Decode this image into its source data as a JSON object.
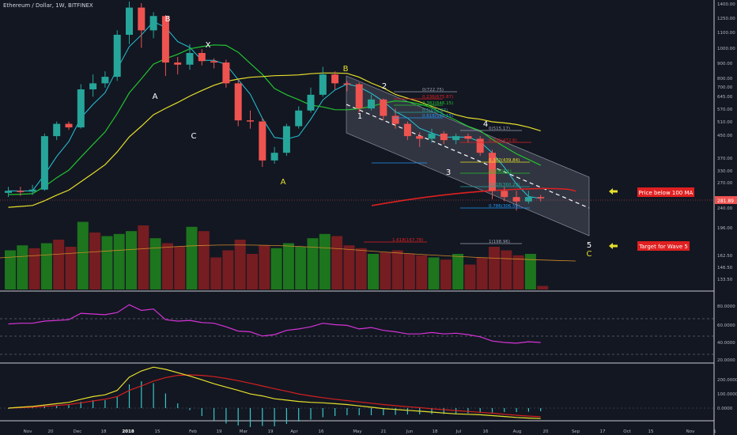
{
  "header": {
    "title": "Ethereum / Dollar, 1W, BITFINEX"
  },
  "annotations": {
    "price_below_ma": "Price below 100 MA",
    "target_wave5": "Target for Wave 5",
    "current_price": "281.89"
  },
  "colors": {
    "background": "#131722",
    "up": "#26a69a",
    "down": "#ef5350",
    "ma_fast": "#26c6da",
    "ma_mid": "#22c42f",
    "ma_slow": "#e6e02a",
    "ma_100": "#e02020",
    "vol_up": "#1e7a1e",
    "vol_down": "#7a1e22",
    "rsi": "#d633d6",
    "macd_fast": "#e6e02a",
    "macd_slow": "#d42020",
    "macd_hist": "#39c6c6",
    "label_box": "#e02020",
    "arrow": "#e6e02a",
    "channel": "#9aa0b0"
  },
  "chart_data": {
    "type": "candlestick",
    "x_ticks": [
      "Nov",
      "20",
      "Dec",
      "18",
      "2018",
      "15",
      "Feb",
      "19",
      "Mar",
      "19",
      "Apr",
      "16",
      "May",
      "21",
      "Jun",
      "18",
      "Jul",
      "16",
      "Aug",
      "20",
      "Sep",
      "17",
      "Oct",
      "15",
      "Nov",
      "1"
    ],
    "y_ticks": [
      "1400.00",
      "1250.00",
      "1100.00",
      "1000.00",
      "900.00",
      "800.00",
      "700.00",
      "645.00",
      "570.00",
      "510.00",
      "450.00",
      "370.00",
      "330.00",
      "270.00",
      "240.00",
      "196.00",
      "162.50",
      "146.50",
      "133.50"
    ],
    "rsi_ticks": [
      "80.0000",
      "60.0000",
      "40.0000",
      "20.0000"
    ],
    "macd_ticks": [
      "200.0000",
      "100.0000",
      "0.0000"
    ],
    "candles": [
      {
        "o": 295,
        "c": 300,
        "h": 310,
        "l": 285
      },
      {
        "o": 300,
        "c": 298,
        "h": 310,
        "l": 288
      },
      {
        "o": 298,
        "c": 303,
        "h": 315,
        "l": 290
      },
      {
        "o": 303,
        "c": 470,
        "h": 480,
        "l": 300
      },
      {
        "o": 470,
        "c": 520,
        "h": 530,
        "l": 455
      },
      {
        "o": 520,
        "c": 505,
        "h": 530,
        "l": 495
      },
      {
        "o": 505,
        "c": 690,
        "h": 720,
        "l": 500
      },
      {
        "o": 690,
        "c": 725,
        "h": 780,
        "l": 650
      },
      {
        "o": 725,
        "c": 765,
        "h": 800,
        "l": 700
      },
      {
        "o": 765,
        "c": 1080,
        "h": 1120,
        "l": 740
      },
      {
        "o": 1080,
        "c": 1350,
        "h": 1420,
        "l": 1000
      },
      {
        "o": 1350,
        "c": 1120,
        "h": 1400,
        "l": 970
      },
      {
        "o": 1120,
        "c": 1260,
        "h": 1300,
        "l": 1050
      },
      {
        "o": 1260,
        "c": 860,
        "h": 1270,
        "l": 770
      },
      {
        "o": 860,
        "c": 845,
        "h": 900,
        "l": 780
      },
      {
        "o": 845,
        "c": 930,
        "h": 1000,
        "l": 810
      },
      {
        "o": 930,
        "c": 870,
        "h": 960,
        "l": 840
      },
      {
        "o": 870,
        "c": 860,
        "h": 890,
        "l": 820
      },
      {
        "o": 860,
        "c": 725,
        "h": 880,
        "l": 700
      },
      {
        "o": 725,
        "c": 535,
        "h": 750,
        "l": 510
      },
      {
        "o": 535,
        "c": 530,
        "h": 580,
        "l": 500
      },
      {
        "o": 530,
        "c": 385,
        "h": 545,
        "l": 365
      },
      {
        "o": 385,
        "c": 410,
        "h": 430,
        "l": 375
      },
      {
        "o": 410,
        "c": 510,
        "h": 520,
        "l": 400
      },
      {
        "o": 510,
        "c": 580,
        "h": 600,
        "l": 500
      },
      {
        "o": 580,
        "c": 660,
        "h": 700,
        "l": 570
      },
      {
        "o": 660,
        "c": 780,
        "h": 830,
        "l": 650
      },
      {
        "o": 780,
        "c": 725,
        "h": 800,
        "l": 690
      },
      {
        "o": 725,
        "c": 720,
        "h": 740,
        "l": 680
      },
      {
        "o": 720,
        "c": 590,
        "h": 730,
        "l": 570
      },
      {
        "o": 590,
        "c": 635,
        "h": 660,
        "l": 580
      },
      {
        "o": 635,
        "c": 555,
        "h": 640,
        "l": 535
      },
      {
        "o": 555,
        "c": 520,
        "h": 590,
        "l": 500
      },
      {
        "o": 520,
        "c": 470,
        "h": 530,
        "l": 455
      },
      {
        "o": 470,
        "c": 460,
        "h": 485,
        "l": 430
      },
      {
        "o": 460,
        "c": 480,
        "h": 500,
        "l": 445
      },
      {
        "o": 480,
        "c": 455,
        "h": 490,
        "l": 440
      },
      {
        "o": 455,
        "c": 470,
        "h": 480,
        "l": 440
      },
      {
        "o": 470,
        "c": 460,
        "h": 480,
        "l": 445
      },
      {
        "o": 460,
        "c": 410,
        "h": 470,
        "l": 400
      },
      {
        "o": 410,
        "c": 300,
        "h": 420,
        "l": 280
      },
      {
        "o": 300,
        "c": 285,
        "h": 310,
        "l": 275
      },
      {
        "o": 285,
        "c": 275,
        "h": 300,
        "l": 255
      },
      {
        "o": 275,
        "c": 285,
        "h": 300,
        "l": 270
      },
      {
        "o": 285,
        "c": 282,
        "h": 290,
        "l": 275
      }
    ],
    "volume": [
      {
        "v": 0.55,
        "up": true
      },
      {
        "v": 0.62,
        "up": true
      },
      {
        "v": 0.58,
        "up": false
      },
      {
        "v": 0.65,
        "up": true
      },
      {
        "v": 0.7,
        "up": false
      },
      {
        "v": 0.6,
        "up": false
      },
      {
        "v": 0.95,
        "up": true
      },
      {
        "v": 0.8,
        "up": false
      },
      {
        "v": 0.75,
        "up": true
      },
      {
        "v": 0.78,
        "up": true
      },
      {
        "v": 0.82,
        "up": true
      },
      {
        "v": 0.9,
        "up": false
      },
      {
        "v": 0.72,
        "up": true
      },
      {
        "v": 0.65,
        "up": false
      },
      {
        "v": 0.6,
        "up": false
      },
      {
        "v": 0.88,
        "up": true
      },
      {
        "v": 0.82,
        "up": false
      },
      {
        "v": 0.45,
        "up": false
      },
      {
        "v": 0.55,
        "up": false
      },
      {
        "v": 0.7,
        "up": false
      },
      {
        "v": 0.5,
        "up": false
      },
      {
        "v": 0.62,
        "up": false
      },
      {
        "v": 0.58,
        "up": true
      },
      {
        "v": 0.65,
        "up": true
      },
      {
        "v": 0.6,
        "up": true
      },
      {
        "v": 0.72,
        "up": true
      },
      {
        "v": 0.78,
        "up": true
      },
      {
        "v": 0.75,
        "up": false
      },
      {
        "v": 0.62,
        "up": false
      },
      {
        "v": 0.58,
        "up": false
      },
      {
        "v": 0.5,
        "up": true
      },
      {
        "v": 0.52,
        "up": false
      },
      {
        "v": 0.55,
        "up": false
      },
      {
        "v": 0.5,
        "up": false
      },
      {
        "v": 0.48,
        "up": false
      },
      {
        "v": 0.45,
        "up": true
      },
      {
        "v": 0.42,
        "up": false
      },
      {
        "v": 0.5,
        "up": true
      },
      {
        "v": 0.35,
        "up": false
      },
      {
        "v": 0.45,
        "up": false
      },
      {
        "v": 0.6,
        "up": false
      },
      {
        "v": 0.55,
        "up": false
      },
      {
        "v": 0.48,
        "up": false
      },
      {
        "v": 0.5,
        "up": true
      },
      {
        "v": 0.05,
        "up": false
      }
    ],
    "rsi": [
      56,
      57,
      57,
      60,
      61,
      62,
      71,
      70,
      69,
      72,
      83,
      75,
      77,
      62,
      60,
      61,
      58,
      57,
      52,
      46,
      45,
      39,
      41,
      47,
      49,
      52,
      57,
      55,
      54,
      49,
      51,
      47,
      45,
      42,
      42,
      44,
      42,
      43,
      41,
      38,
      32,
      30,
      29,
      31,
      30
    ],
    "fib": [
      {
        "label": "0(722.75)",
        "color": "#9aa0b0"
      },
      {
        "label": "0.236(675.87)",
        "color": "#e02020"
      },
      {
        "label": "0.382(646.15)",
        "color": "#22c42f"
      },
      {
        "label": "0.5(622.87)",
        "color": "#26a69a"
      },
      {
        "label": "0.618(595.15)",
        "color": "#2196f3"
      },
      {
        "label": "0(515.17)",
        "color": "#9aa0b0"
      },
      {
        "label": "0.236(472.6)",
        "color": "#e02020"
      },
      {
        "label": "0.382(439.84)",
        "color": "#e6e02a"
      },
      {
        "label": "0.5(403.1)",
        "color": "#22c42f"
      },
      {
        "label": "0.618(360.29)",
        "color": "#26a69a"
      },
      {
        "label": "0.786(306.54)",
        "color": "#2196f3"
      },
      {
        "label": "1(198.96)",
        "color": "#9aa0b0"
      },
      {
        "label": "1.618(167.78)",
        "color": "#e02020"
      }
    ],
    "waves": [
      {
        "label": "B",
        "color": "#ffffff"
      },
      {
        "label": "X",
        "color": "#ffffff"
      },
      {
        "label": "A",
        "color": "#ffffff"
      },
      {
        "label": "C",
        "color": "#ffffff"
      },
      {
        "label": "A",
        "color": "#e6e02a"
      },
      {
        "label": "B",
        "color": "#e6e02a"
      },
      {
        "label": "1",
        "color": "#ffffff"
      },
      {
        "label": "2",
        "color": "#ffffff"
      },
      {
        "label": "3",
        "color": "#ffffff"
      },
      {
        "label": "4",
        "color": "#ffffff"
      },
      {
        "label": "5",
        "color": "#ffffff"
      },
      {
        "label": "C",
        "color": "#e6e02a"
      }
    ]
  }
}
